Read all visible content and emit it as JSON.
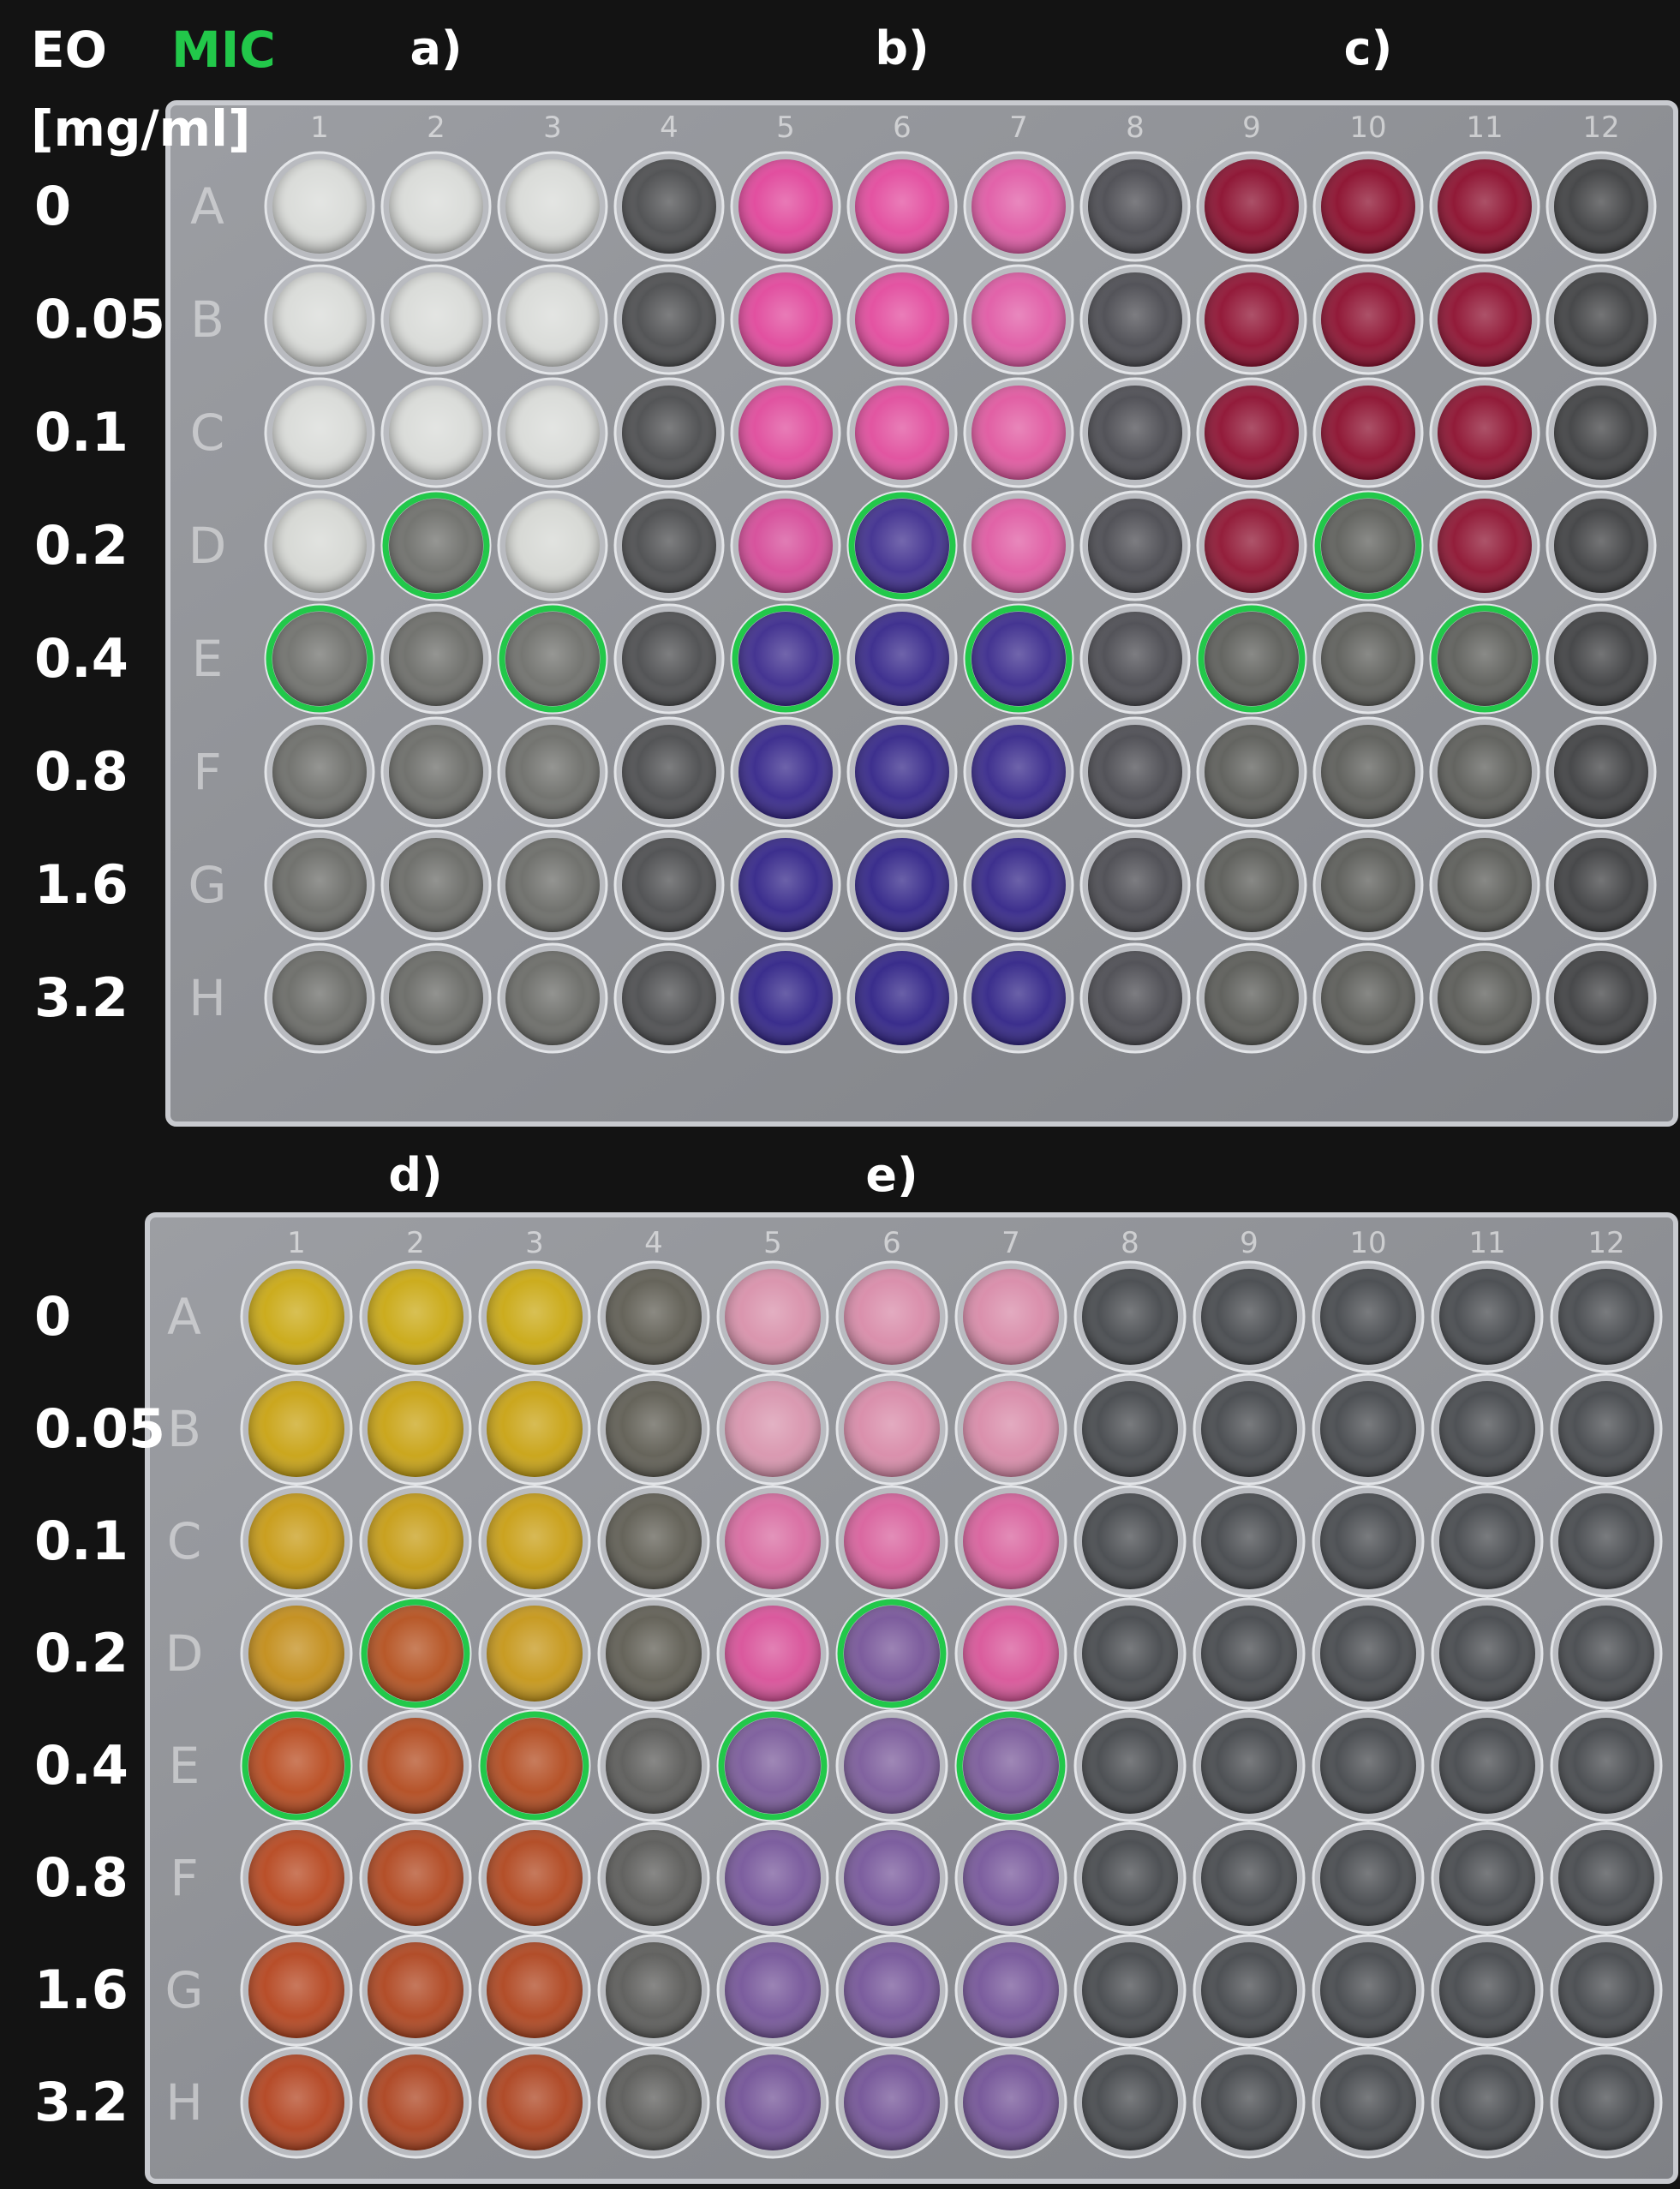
{
  "header": {
    "eo_label": "EO",
    "mic_label": "MIC",
    "unit_label": "[mg/ml]"
  },
  "concentrations": [
    "0",
    "0.05",
    "0.1",
    "0.2",
    "0.4",
    "0.8",
    "1.6",
    "3.2"
  ],
  "plates": [
    {
      "id": "top",
      "col_numbers": [
        "1",
        "2",
        "3",
        "4",
        "5",
        "6",
        "7",
        "8",
        "9",
        "10",
        "11",
        "12"
      ],
      "row_letters": [
        "A",
        "B",
        "C",
        "D",
        "E",
        "F",
        "G",
        "H"
      ],
      "panels": [
        {
          "label": "a)",
          "columns": [
            1,
            2,
            3
          ]
        },
        {
          "label": "b)",
          "columns": [
            5,
            6,
            7
          ]
        },
        {
          "label": "c)",
          "columns": [
            9,
            10,
            11
          ]
        }
      ],
      "column_colors": {
        "1": [
          "#d9dbd8",
          "#d9dbd8",
          "#d9dbd8",
          "#d6d8d4",
          "#6f706c",
          "#6c6d69",
          "#6a6b67",
          "#696a66"
        ],
        "2": [
          "#d9dbd8",
          "#d9dbd8",
          "#d9dbd8",
          "#6d6e6a",
          "#6b6c68",
          "#6a6b67",
          "#696a66",
          "#686965"
        ],
        "3": [
          "#d9dbd8",
          "#d9dbd8",
          "#d9dbd8",
          "#d6d8d4",
          "#6e6f6b",
          "#6c6d69",
          "#6a6b67",
          "#696a66"
        ],
        "4": [
          "#4b4c4e",
          "#4b4c4e",
          "#4b4c4e",
          "#4b4c4e",
          "#4b4c4e",
          "#4b4c4e",
          "#4b4c4e",
          "#4b4c4e"
        ],
        "5": [
          "#e0459a",
          "#e0479b",
          "#df4a9b",
          "#d54a98",
          "#3b2a8c",
          "#35268a",
          "#322488",
          "#302387"
        ],
        "6": [
          "#e24a9d",
          "#e24a9d",
          "#e04c9c",
          "#3e2d8e",
          "#36278a",
          "#332588",
          "#302387",
          "#2f2286"
        ],
        "7": [
          "#e05aa5",
          "#e05aa5",
          "#e0579f",
          "#df5aa2",
          "#3a2a8c",
          "#36278a",
          "#332588",
          "#312487"
        ],
        "8": [
          "#4a4a50",
          "#4a4a50",
          "#4a4a50",
          "#4a4a50",
          "#4a4a50",
          "#4a4a50",
          "#4a4a50",
          "#4a4a50"
        ],
        "9": [
          "#8a0d2d",
          "#8e0f30",
          "#8d0f30",
          "#8e1331",
          "#5c5d59",
          "#5b5c58",
          "#5a5b57",
          "#595a56"
        ],
        "10": [
          "#8a0c2b",
          "#8c0e2e",
          "#8b0e2d",
          "#5d5e5a",
          "#5c5d59",
          "#5b5c58",
          "#5a5b57",
          "#595a56"
        ],
        "11": [
          "#8b0d2c",
          "#8d0f2f",
          "#8c0f2e",
          "#8d1230",
          "#5c5d59",
          "#5b5c58",
          "#5a5b57",
          "#595a56"
        ],
        "12": [
          "#3e3f41",
          "#3e3f41",
          "#3e3f41",
          "#3e3f41",
          "#3e3f41",
          "#3e3f41",
          "#3e3f41",
          "#3e3f41"
        ]
      },
      "mic_wells": [
        [
          2,
          "D"
        ],
        [
          1,
          "E"
        ],
        [
          3,
          "E"
        ],
        [
          6,
          "D"
        ],
        [
          5,
          "E"
        ],
        [
          7,
          "E"
        ],
        [
          10,
          "D"
        ],
        [
          9,
          "E"
        ],
        [
          11,
          "E"
        ]
      ]
    },
    {
      "id": "bottom",
      "col_numbers": [
        "1",
        "2",
        "3",
        "4",
        "5",
        "6",
        "7",
        "8",
        "9",
        "10",
        "11",
        "12"
      ],
      "row_letters": [
        "A",
        "B",
        "C",
        "D",
        "E",
        "F",
        "G",
        "H"
      ],
      "panels": [
        {
          "label": "d)",
          "columns": [
            1,
            2,
            3
          ]
        },
        {
          "label": "e)",
          "columns": [
            5,
            6,
            7
          ]
        }
      ],
      "column_colors": {
        "1": [
          "#c9a812",
          "#c8a212",
          "#c79a14",
          "#c28c18",
          "#b84a1e",
          "#b6461e",
          "#b4441e",
          "#b2421e"
        ],
        "2": [
          "#c9a812",
          "#c8a212",
          "#c69c14",
          "#b4501e",
          "#b24a1e",
          "#b0461e",
          "#ae441e",
          "#ac421e"
        ],
        "3": [
          "#c9a812",
          "#c8a212",
          "#c89e14",
          "#c59618",
          "#b24a1e",
          "#b0461e",
          "#ae441e",
          "#ac421e"
        ],
        "4": [
          "#5e5c52",
          "#5e5c52",
          "#5e5c52",
          "#5e5c52",
          "#5a5a58",
          "#5a5a58",
          "#5a5a58",
          "#5a5a58"
        ],
        "5": [
          "#d890aa",
          "#d894ad",
          "#d86aa0",
          "#d85098",
          "#7a5a9a",
          "#76569a",
          "#745498",
          "#725296"
        ],
        "6": [
          "#d88aa8",
          "#d88aa8",
          "#d8609c",
          "#765498",
          "#7a5a9a",
          "#76569a",
          "#745498",
          "#725296"
        ],
        "7": [
          "#d88aa8",
          "#d88aa8",
          "#d8609c",
          "#d85498",
          "#7a5a9a",
          "#76569a",
          "#745498",
          "#725296"
        ],
        "8": [
          "#45484c",
          "#45484c",
          "#45484c",
          "#45484c",
          "#45484c",
          "#45484c",
          "#45484c",
          "#45484c"
        ],
        "9": [
          "#45484c",
          "#45484c",
          "#45484c",
          "#45484c",
          "#45484c",
          "#45484c",
          "#45484c",
          "#45484c"
        ],
        "10": [
          "#45484c",
          "#45484c",
          "#45484c",
          "#45484c",
          "#45484c",
          "#45484c",
          "#45484c",
          "#45484c"
        ],
        "11": [
          "#45484c",
          "#45484c",
          "#45484c",
          "#45484c",
          "#45484c",
          "#45484c",
          "#45484c",
          "#45484c"
        ],
        "12": [
          "#45484c",
          "#45484c",
          "#45484c",
          "#45484c",
          "#45484c",
          "#45484c",
          "#45484c",
          "#45484c"
        ]
      },
      "mic_wells": [
        [
          2,
          "D"
        ],
        [
          1,
          "E"
        ],
        [
          3,
          "E"
        ],
        [
          6,
          "D"
        ],
        [
          5,
          "E"
        ],
        [
          7,
          "E"
        ]
      ]
    }
  ],
  "colors": {
    "background": "#131313",
    "plate": "#8f9196",
    "plate_edge": "#c8cacf",
    "mic_ring": "#22c84a",
    "label_text": "#ffffff"
  }
}
